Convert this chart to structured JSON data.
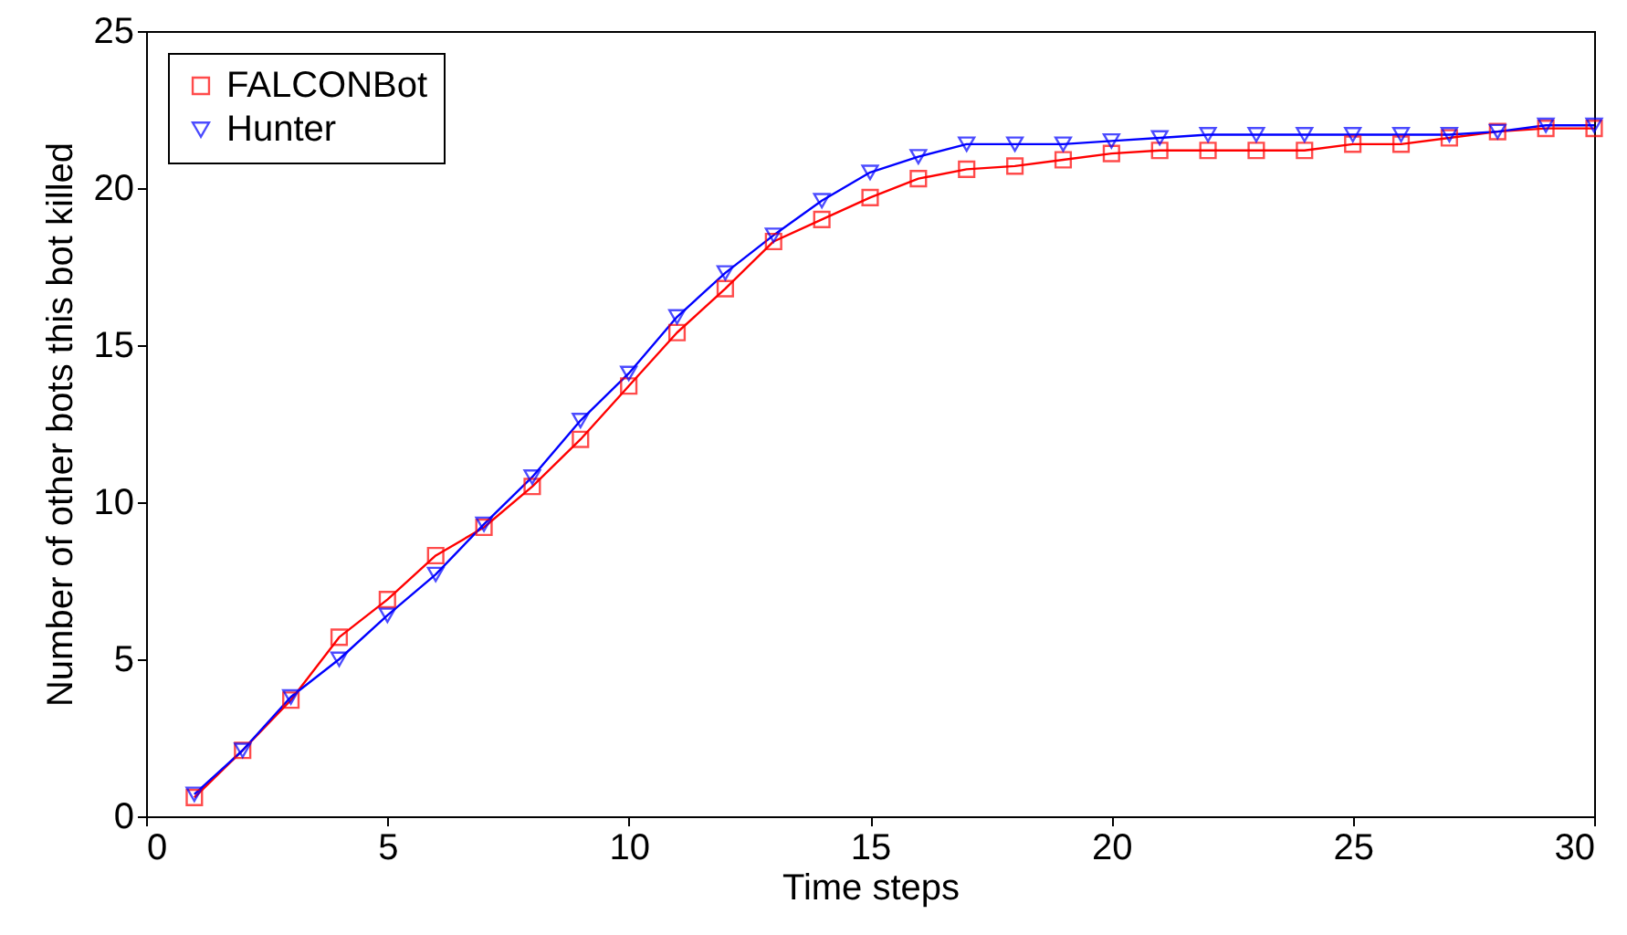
{
  "chart_data": {
    "type": "line",
    "xlabel": "Time steps",
    "ylabel": "Number of other bots this bot killed",
    "x": [
      1,
      2,
      3,
      4,
      5,
      6,
      7,
      8,
      9,
      10,
      11,
      12,
      13,
      14,
      15,
      16,
      17,
      18,
      19,
      20,
      21,
      22,
      23,
      24,
      25,
      26,
      27,
      28,
      29,
      30
    ],
    "series": [
      {
        "name": "FALCONBot",
        "color": "#ff0000",
        "marker": "square",
        "values": [
          0.6,
          2.1,
          3.7,
          5.7,
          6.9,
          8.3,
          9.2,
          10.5,
          12.0,
          13.7,
          15.4,
          16.8,
          18.3,
          19.0,
          19.7,
          20.3,
          20.6,
          20.7,
          20.9,
          21.1,
          21.2,
          21.2,
          21.2,
          21.2,
          21.4,
          21.4,
          21.6,
          21.8,
          21.9,
          21.9
        ]
      },
      {
        "name": "Hunter",
        "color": "#0000ff",
        "marker": "triangle",
        "values": [
          0.7,
          2.1,
          3.8,
          5.0,
          6.4,
          7.7,
          9.3,
          10.8,
          12.6,
          14.1,
          15.9,
          17.3,
          18.5,
          19.6,
          20.5,
          21.0,
          21.4,
          21.4,
          21.4,
          21.5,
          21.6,
          21.7,
          21.7,
          21.7,
          21.7,
          21.7,
          21.7,
          21.8,
          22.0,
          22.0
        ]
      }
    ],
    "xlim": [
      0,
      30
    ],
    "xticks": [
      0,
      5,
      10,
      15,
      20,
      25,
      30
    ],
    "ylim": [
      0,
      25
    ],
    "yticks": [
      0,
      5,
      10,
      15,
      20,
      25
    ],
    "grid": false,
    "legend": "top left",
    "line_style": "solid"
  }
}
